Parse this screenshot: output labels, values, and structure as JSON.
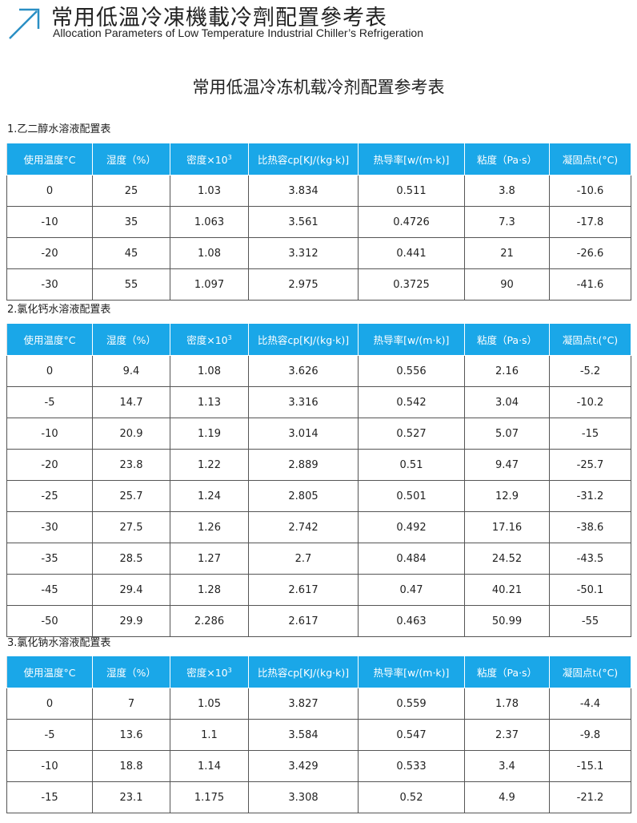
{
  "header": {
    "title_cn": "常用低溫冷凍機載冷劑配置參考表",
    "title_en": "Allocation Parameters of Low Temperature Industrial Chiller’s Refrigeration",
    "icon": "arrow-up-right-icon",
    "accent": "#2a8fc4"
  },
  "main_title": "常用低温冷冻机载冷剂配置参考表",
  "columns": [
    "使用温度°C",
    "湿度（%）",
    "密度×10",
    "比热容cp[KJ/(kg·k)]",
    "热导率[w/(m·k)]",
    "粘度（Pa·s）",
    "凝固点tᵢ(°C)"
  ],
  "density_sup": "3",
  "header_color": "#1aa7e8",
  "tables": [
    {
      "label": "1.乙二醇水溶液配置表",
      "rows": [
        [
          "0",
          "25",
          "1.03",
          "3.834",
          "0.511",
          "3.8",
          "-10.6"
        ],
        [
          "-10",
          "35",
          "1.063",
          "3.561",
          "0.4726",
          "7.3",
          "-17.8"
        ],
        [
          "-20",
          "45",
          "1.08",
          "3.312",
          "0.441",
          "21",
          "-26.6"
        ],
        [
          "-30",
          "55",
          "1.097",
          "2.975",
          "0.3725",
          "90",
          "-41.6"
        ]
      ]
    },
    {
      "label": "2.氯化钙水溶液配置表",
      "rows": [
        [
          "0",
          "9.4",
          "1.08",
          "3.626",
          "0.556",
          "2.16",
          "-5.2"
        ],
        [
          "-5",
          "14.7",
          "1.13",
          "3.316",
          "0.542",
          "3.04",
          "-10.2"
        ],
        [
          "-10",
          "20.9",
          "1.19",
          "3.014",
          "0.527",
          "5.07",
          "-15"
        ],
        [
          "-20",
          "23.8",
          "1.22",
          "2.889",
          "0.51",
          "9.47",
          "-25.7"
        ],
        [
          "-25",
          "25.7",
          "1.24",
          "2.805",
          "0.501",
          "12.9",
          "-31.2"
        ],
        [
          "-30",
          "27.5",
          "1.26",
          "2.742",
          "0.492",
          "17.16",
          "-38.6"
        ],
        [
          "-35",
          "28.5",
          "1.27",
          "2.7",
          "0.484",
          "24.52",
          "-43.5"
        ],
        [
          "-45",
          "29.4",
          "1.28",
          "2.617",
          "0.47",
          "40.21",
          "-50.1"
        ],
        [
          "-50",
          "29.9",
          "2.286",
          "2.617",
          "0.463",
          "50.99",
          "-55"
        ]
      ]
    },
    {
      "label": "3.氯化钠水溶液配置表",
      "rows": [
        [
          "0",
          "7",
          "1.05",
          "3.827",
          "0.559",
          "1.78",
          "-4.4"
        ],
        [
          "-5",
          "13.6",
          "1.1",
          "3.584",
          "0.547",
          "2.37",
          "-9.8"
        ],
        [
          "-10",
          "18.8",
          "1.14",
          "3.429",
          "0.533",
          "3.4",
          "-15.1"
        ],
        [
          "-15",
          "23.1",
          "1.175",
          "3.308",
          "0.52",
          "4.9",
          "-21.2"
        ]
      ]
    }
  ]
}
